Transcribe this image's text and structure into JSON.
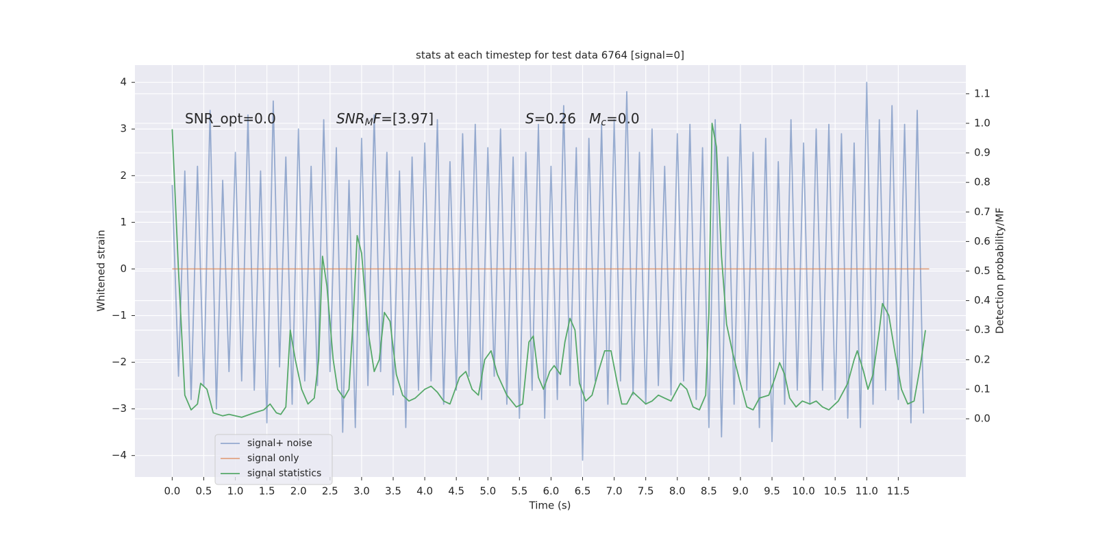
{
  "chart_data": {
    "type": "line",
    "title": "stats at each timestep for test data 6764 [signal=0]",
    "xlabel": "Time (s)",
    "ylabel": "Whitened strain",
    "y2label": "Detection probability/MF",
    "xlim": [
      -0.59,
      12.57
    ],
    "ylim": [
      -4.46,
      4.37
    ],
    "y2lim": [
      -0.197,
      1.197
    ],
    "xticks": [
      {
        "value": 0,
        "label": "0.0"
      },
      {
        "value": 0.5,
        "label": "0.5"
      },
      {
        "value": 1,
        "label": "1.0"
      },
      {
        "value": 1.5,
        "label": "1.5"
      },
      {
        "value": 2,
        "label": "2.0"
      },
      {
        "value": 2.5,
        "label": "2.5"
      },
      {
        "value": 3,
        "label": "3.0"
      },
      {
        "value": 3.5,
        "label": "3.5"
      },
      {
        "value": 4,
        "label": "4.0"
      },
      {
        "value": 4.5,
        "label": "4.5"
      },
      {
        "value": 5,
        "label": "5.0"
      },
      {
        "value": 5.5,
        "label": "5.5"
      },
      {
        "value": 6,
        "label": "6.0"
      },
      {
        "value": 6.5,
        "label": "6.5"
      },
      {
        "value": 7,
        "label": "7.0"
      },
      {
        "value": 7.5,
        "label": "7.5"
      },
      {
        "value": 8,
        "label": "8.0"
      },
      {
        "value": 8.5,
        "label": "8.5"
      },
      {
        "value": 9,
        "label": "9.0"
      },
      {
        "value": 9.5,
        "label": "9.5"
      },
      {
        "value": 10,
        "label": "10.0"
      },
      {
        "value": 10.5,
        "label": "10.5"
      },
      {
        "value": 11,
        "label": "11.0"
      },
      {
        "value": 11.5,
        "label": "11.5"
      }
    ],
    "yticks": [
      {
        "value": -4,
        "label": "−4"
      },
      {
        "value": -3,
        "label": "−3"
      },
      {
        "value": -2,
        "label": "−2"
      },
      {
        "value": -1,
        "label": "−1"
      },
      0,
      1,
      2,
      3,
      4
    ],
    "y2ticks": [
      {
        "value": 0,
        "label": "0.0"
      },
      0.1,
      0.2,
      0.3,
      0.4,
      0.5,
      0.6,
      0.7,
      0.8,
      0.9,
      {
        "value": 1,
        "label": "1.0"
      },
      1.1
    ],
    "grid": true,
    "legend": "lower left",
    "annotations": [
      [
        {
          "text": "SNR_opt=0.0"
        }
      ],
      [
        {
          "text": "SNR",
          "italic": true
        },
        {
          "text": "M",
          "italic": true,
          "sub": true
        },
        {
          "text": "F",
          "italic": true
        },
        {
          "text": "=[3.97]"
        }
      ],
      [
        {
          "text": "S",
          "italic": true
        },
        {
          "text": "=0.26   "
        },
        {
          "text": "M",
          "italic": true
        },
        {
          "text": "c",
          "italic": true,
          "sub": true
        },
        {
          "text": "=0.0"
        }
      ]
    ],
    "series": [
      {
        "name": "signal+ noise",
        "color": "#4c72b0",
        "axis": "y",
        "x": [
          0,
          0.1,
          0.2,
          0.3,
          0.4,
          0.5,
          0.6,
          0.7,
          0.8,
          0.9,
          1,
          1.1,
          1.2,
          1.3,
          1.4,
          1.5,
          1.6,
          1.7,
          1.8,
          1.9,
          2,
          2.1,
          2.2,
          2.3,
          2.4,
          2.5,
          2.6,
          2.7,
          2.8,
          2.9,
          3,
          3.1,
          3.2,
          3.3,
          3.4,
          3.5,
          3.6,
          3.7,
          3.8,
          3.9,
          4,
          4.1,
          4.2,
          4.3,
          4.4,
          4.5,
          4.6,
          4.7,
          4.8,
          4.9,
          5,
          5.1,
          5.2,
          5.3,
          5.4,
          5.5,
          5.6,
          5.7,
          5.8,
          5.9,
          6,
          6.1,
          6.2,
          6.3,
          6.4,
          6.5,
          6.6,
          6.7,
          6.8,
          6.9,
          7,
          7.1,
          7.2,
          7.3,
          7.4,
          7.5,
          7.6,
          7.7,
          7.8,
          7.9,
          8,
          8.1,
          8.2,
          8.3,
          8.4,
          8.5,
          8.6,
          8.7,
          8.8,
          8.9,
          9,
          9.1,
          9.2,
          9.3,
          9.4,
          9.5,
          9.6,
          9.7,
          9.8,
          9.9,
          10,
          10.1,
          10.2,
          10.3,
          10.4,
          10.5,
          10.6,
          10.7,
          10.8,
          10.9,
          11,
          11.1,
          11.2,
          11.3,
          11.4,
          11.5,
          11.6,
          11.7,
          11.8,
          11.9
        ],
        "values": [
          1.8,
          -2.3,
          2.1,
          -2.8,
          2.2,
          -2.5,
          3.4,
          -3.0,
          1.9,
          -2.2,
          2.5,
          -2.4,
          3.3,
          -2.6,
          2.1,
          -3.3,
          3.6,
          -2.1,
          2.4,
          -2.9,
          3.0,
          -2.4,
          2.2,
          -2.5,
          3.2,
          -2.2,
          2.6,
          -3.5,
          1.9,
          -3.4,
          2.8,
          -2.5,
          3.3,
          -2.2,
          2.5,
          -2.7,
          2.1,
          -3.4,
          2.4,
          -2.6,
          2.7,
          -2.4,
          3.2,
          -2.9,
          2.3,
          -2.6,
          2.9,
          -2.3,
          3.1,
          -2.8,
          2.6,
          -2.3,
          3.0,
          -2.9,
          2.4,
          -3.2,
          2.5,
          -2.6,
          3.1,
          -3.2,
          2.2,
          -2.8,
          3.5,
          -2.5,
          2.6,
          -4.1,
          2.8,
          -2.4,
          3.1,
          -2.9,
          3.2,
          -2.4,
          3.8,
          -2.7,
          2.5,
          -2.9,
          3.0,
          -2.5,
          2.2,
          -2.7,
          2.9,
          -2.4,
          3.1,
          -2.8,
          2.6,
          -3.4,
          3.2,
          -3.6,
          2.4,
          -2.9,
          3.1,
          -2.6,
          2.5,
          -3.4,
          2.8,
          -3.7,
          2.3,
          -2.9,
          3.2,
          -2.6,
          2.7,
          -2.9,
          3.0,
          -2.6,
          3.1,
          -2.8,
          2.9,
          -3.2,
          2.7,
          -3.4,
          4.0,
          -2.9,
          3.2,
          -2.6,
          3.5,
          -2.8,
          3.1,
          -3.3,
          3.4,
          -3.1
        ]
      },
      {
        "name": "signal only",
        "color": "#dd8452",
        "axis": "y",
        "x": [
          0,
          11.99
        ],
        "values": [
          0,
          0
        ]
      },
      {
        "name": "signal statistics",
        "color": "#55a868",
        "axis": "y2",
        "x": [
          0,
          0.1,
          0.2,
          0.3,
          0.4,
          0.45,
          0.55,
          0.65,
          0.8,
          0.9,
          1.1,
          1.3,
          1.45,
          1.55,
          1.65,
          1.72,
          1.8,
          1.87,
          1.95,
          2.05,
          2.15,
          2.25,
          2.32,
          2.38,
          2.45,
          2.55,
          2.62,
          2.72,
          2.8,
          2.87,
          2.93,
          3.0,
          3.1,
          3.2,
          3.28,
          3.36,
          3.45,
          3.55,
          3.65,
          3.75,
          3.85,
          4.0,
          4.1,
          4.2,
          4.3,
          4.4,
          4.55,
          4.65,
          4.75,
          4.85,
          4.95,
          5.05,
          5.15,
          5.3,
          5.45,
          5.55,
          5.65,
          5.72,
          5.8,
          5.88,
          5.98,
          6.05,
          6.15,
          6.22,
          6.3,
          6.38,
          6.45,
          6.55,
          6.65,
          6.75,
          6.85,
          6.95,
          7.05,
          7.12,
          7.2,
          7.3,
          7.4,
          7.5,
          7.6,
          7.7,
          7.8,
          7.9,
          8.05,
          8.15,
          8.25,
          8.35,
          8.45,
          8.5,
          8.55,
          8.62,
          8.7,
          8.78,
          8.88,
          9.0,
          9.1,
          9.2,
          9.3,
          9.45,
          9.55,
          9.62,
          9.7,
          9.78,
          9.88,
          9.98,
          10.1,
          10.2,
          10.3,
          10.4,
          10.55,
          10.7,
          10.8,
          10.85,
          10.95,
          11.02,
          11.1,
          11.2,
          11.25,
          11.35,
          11.45,
          11.55,
          11.65,
          11.75,
          11.85,
          11.93
        ],
        "values": [
          0.98,
          0.5,
          0.08,
          0.03,
          0.05,
          0.12,
          0.1,
          0.02,
          0.01,
          0.015,
          0.005,
          0.02,
          0.03,
          0.05,
          0.02,
          0.015,
          0.04,
          0.3,
          0.2,
          0.1,
          0.05,
          0.07,
          0.2,
          0.55,
          0.45,
          0.2,
          0.1,
          0.07,
          0.1,
          0.35,
          0.62,
          0.56,
          0.3,
          0.16,
          0.2,
          0.36,
          0.33,
          0.15,
          0.08,
          0.06,
          0.07,
          0.1,
          0.11,
          0.09,
          0.06,
          0.05,
          0.14,
          0.16,
          0.1,
          0.08,
          0.2,
          0.23,
          0.15,
          0.08,
          0.04,
          0.05,
          0.26,
          0.28,
          0.14,
          0.1,
          0.16,
          0.18,
          0.15,
          0.26,
          0.34,
          0.3,
          0.12,
          0.06,
          0.08,
          0.16,
          0.23,
          0.23,
          0.12,
          0.05,
          0.05,
          0.09,
          0.07,
          0.05,
          0.06,
          0.08,
          0.07,
          0.06,
          0.12,
          0.1,
          0.04,
          0.03,
          0.08,
          0.36,
          1.0,
          0.92,
          0.55,
          0.32,
          0.22,
          0.12,
          0.04,
          0.03,
          0.07,
          0.08,
          0.14,
          0.19,
          0.15,
          0.07,
          0.04,
          0.06,
          0.05,
          0.06,
          0.04,
          0.03,
          0.06,
          0.12,
          0.2,
          0.23,
          0.16,
          0.1,
          0.15,
          0.3,
          0.39,
          0.35,
          0.22,
          0.1,
          0.05,
          0.06,
          0.18,
          0.3
        ]
      }
    ]
  }
}
